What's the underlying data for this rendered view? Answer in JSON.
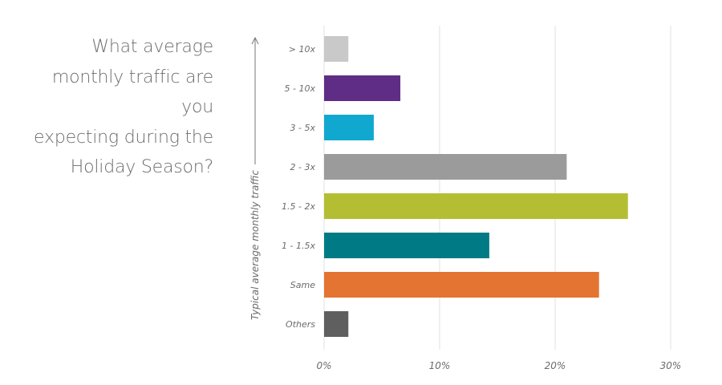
{
  "question": "What average\nmonthly traffic are you\nexpecting during the\nHoliday Season?",
  "chart_data": {
    "type": "bar",
    "orientation": "horizontal",
    "ylabel": "Typical average monthly traffic",
    "xlim": [
      0,
      30
    ],
    "xticks": [
      0,
      10,
      20,
      30
    ],
    "xtick_labels": [
      "0%",
      "10%",
      "20%",
      "30%"
    ],
    "grid": true,
    "categories": [
      "> 10x",
      "5 - 10x",
      "3 - 5x",
      "2 - 3x",
      "1.5 - 2x",
      "1 - 1.5x",
      "Same",
      "Others"
    ],
    "values": [
      2.1,
      6.6,
      4.3,
      21.0,
      26.3,
      14.3,
      23.8,
      2.1
    ],
    "colors": [
      "#c9c9c9",
      "#5f2d86",
      "#10a8cf",
      "#9b9b9b",
      "#b4be33",
      "#007b86",
      "#e47431",
      "#5f5f5f"
    ]
  }
}
